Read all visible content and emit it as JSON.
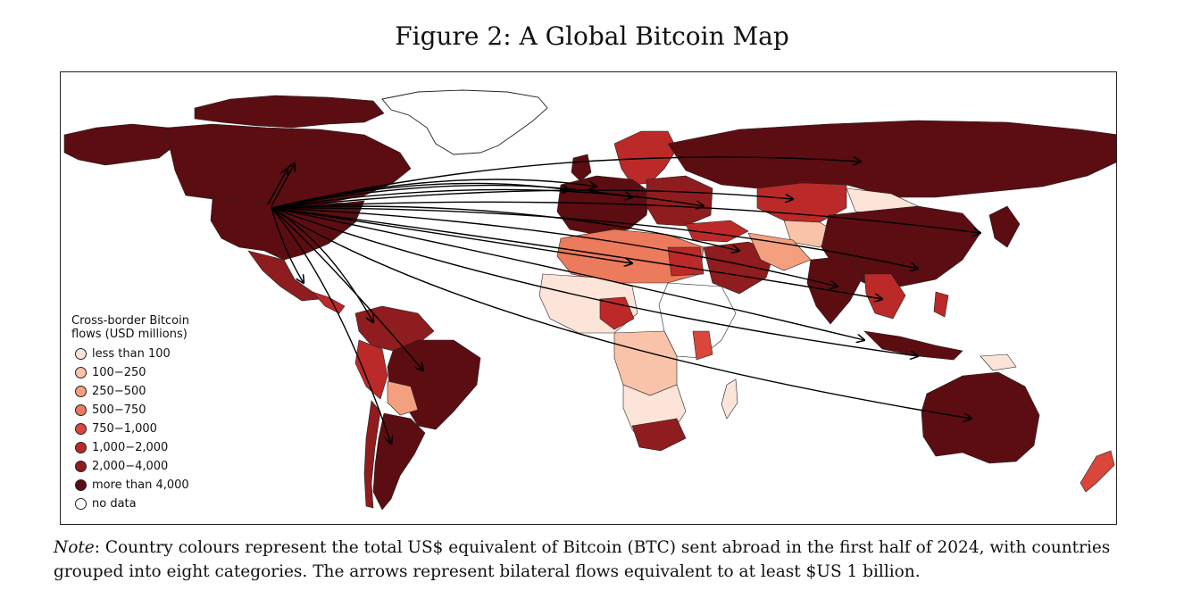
{
  "figure": {
    "title": "Figure 2: A Global Bitcoin Map"
  },
  "legend": {
    "title_line1": "Cross-border Bitcoin",
    "title_line2": "flows (USD millions)",
    "items": [
      {
        "label": "less than 100",
        "color": "#fde4d8"
      },
      {
        "label": "100−250",
        "color": "#f9c3aa"
      },
      {
        "label": "250−500",
        "color": "#f4a07f"
      },
      {
        "label": "500−750",
        "color": "#ec7a5c"
      },
      {
        "label": "750−1,000",
        "color": "#d9473a"
      },
      {
        "label": "1,000−2,000",
        "color": "#bb2a28"
      },
      {
        "label": "2,000−4,000",
        "color": "#8f1c1e"
      },
      {
        "label": "more than 4,000",
        "color": "#5c0d12"
      },
      {
        "label": "no data",
        "color": "#ffffff"
      }
    ]
  },
  "note": {
    "label": "Note",
    "text": ": Country colours represent the total US$ equivalent of Bitcoin (BTC) sent abroad in the first half of 2024, with countries grouped into eight categories. The arrows represent bilateral flows equivalent to at least $US 1 billion."
  }
}
